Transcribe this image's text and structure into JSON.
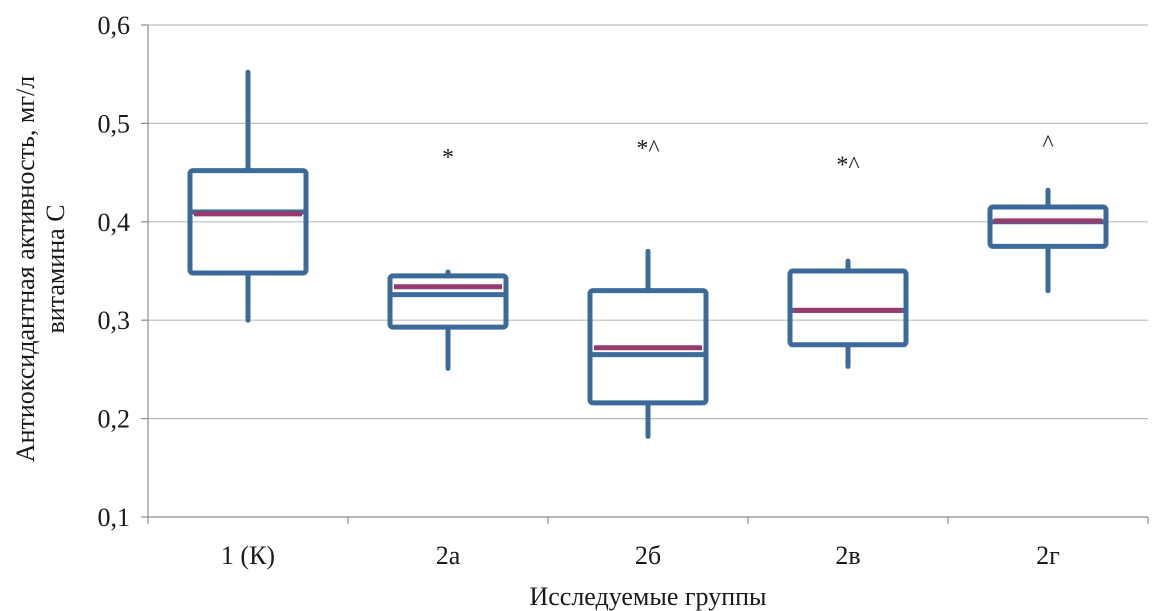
{
  "chart_data": {
    "type": "boxplot",
    "xlabel": "Исследуемые группы",
    "ylabel": "Антиоксидантная активность, мг/л витамина С",
    "ylabel_lines": [
      "Антиоксидантная активность, мг/л",
      "витамина С"
    ],
    "ylim": [
      0.1,
      0.6
    ],
    "y_ticks": [
      0.1,
      0.2,
      0.3,
      0.4,
      0.5,
      0.6
    ],
    "y_tick_labels": [
      "0,1",
      "0,2",
      "0,3",
      "0,4",
      "0,5",
      "0,6"
    ],
    "grid": true,
    "categories": [
      "1 (К)",
      "2а",
      "2б",
      "2в",
      "2г"
    ],
    "boxes": [
      {
        "category": "1 (К)",
        "min": 0.3,
        "q1": 0.348,
        "median": 0.41,
        "mean": 0.408,
        "q3": 0.452,
        "max": 0.552,
        "annotation": ""
      },
      {
        "category": "2а",
        "min": 0.251,
        "q1": 0.293,
        "median": 0.326,
        "mean": 0.334,
        "q3": 0.345,
        "max": 0.349,
        "annotation": "*"
      },
      {
        "category": "2б",
        "min": 0.182,
        "q1": 0.216,
        "median": 0.265,
        "mean": 0.272,
        "q3": 0.33,
        "max": 0.37,
        "annotation": "*^"
      },
      {
        "category": "2в",
        "min": 0.253,
        "q1": 0.275,
        "median": 0.31,
        "mean": 0.31,
        "q3": 0.35,
        "max": 0.36,
        "annotation": "*^"
      },
      {
        "category": "2г",
        "min": 0.33,
        "q1": 0.375,
        "median": 0.4,
        "mean": 0.401,
        "q3": 0.415,
        "max": 0.432,
        "annotation": "^"
      }
    ],
    "annotation_y": [
      null,
      0.466,
      0.475,
      0.458,
      0.48
    ],
    "colors": {
      "box": "#3b6a9b",
      "mean_line": "#9a3a6c",
      "grid": "#bdbdbd",
      "axis": "#8c8c8c"
    }
  }
}
